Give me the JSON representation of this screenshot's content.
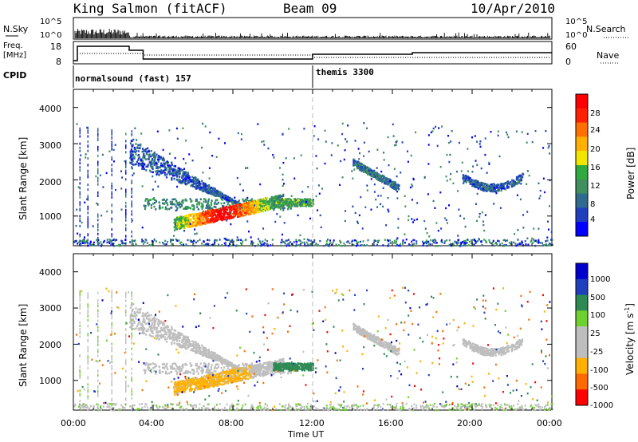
{
  "header": {
    "station": "King Salmon (fitACF)",
    "beam": "Beam 09",
    "date": "10/Apr/2010"
  },
  "summary": {
    "nsky_label": "N.Sky",
    "nsky_ticks": [
      "10^5",
      "10^0"
    ],
    "nsearch_label": "N.Search",
    "nsearch_ticks": [
      "10^5",
      "10^0"
    ],
    "freq_label": "Freq.",
    "freq_unit": "[MHz]",
    "freq_ticks": [
      "18",
      "8"
    ],
    "nave_label": "Nave",
    "nave_ticks": [
      "60",
      "0"
    ],
    "cpid_label": "CPID",
    "cpid_modes": [
      {
        "name": "normalsound (fast) 157",
        "start": 0,
        "end": 12
      },
      {
        "name": "themis 3300",
        "start": 12,
        "end": 24
      }
    ]
  },
  "panels": {
    "ylabel": "Slant Range [km]",
    "yticks": [
      "4000",
      "3000",
      "2000",
      "1000"
    ],
    "xlabel": "Time UT",
    "xticks": [
      "00:00",
      "04:00",
      "08:00",
      "12:00",
      "16:00",
      "20:00",
      "00:00"
    ],
    "power_label": "Power [dB]",
    "power_ticks": [
      "28",
      "24",
      "20",
      "16",
      "12",
      "8",
      "4"
    ],
    "velocity_label": "Velocity [m s",
    "velocity_sup": "-1",
    "velocity_close": "]",
    "velocity_ticks": [
      "1000",
      "500",
      "100",
      "25",
      "-25",
      "-100",
      "-500",
      "-1000"
    ]
  },
  "colors": {
    "power_scale": [
      "#0000ff",
      "#1f3fbf",
      "#2e6b8f",
      "#3f8f5f",
      "#2faa3f",
      "#f2e600",
      "#ffb000",
      "#ff7000",
      "#ff2000",
      "#ff0000"
    ],
    "velocity_scale": [
      "#ff0000",
      "#ff6a00",
      "#ffb000",
      "#bebebe",
      "#bebebe",
      "#6fd12f",
      "#2e8a55",
      "#1f3fbf",
      "#0000cc"
    ]
  },
  "chart_data": {
    "type": "heatmap",
    "x_range_hours": [
      0,
      24
    ],
    "y_range_km": [
      180,
      4500
    ],
    "power_range_db": [
      0,
      30
    ],
    "velocity_range_ms": [
      -1000,
      1000
    ],
    "scatter_regions": [
      {
        "name": "near-range band",
        "t0": 3.5,
        "t1": 11,
        "r0": 1200,
        "r1": 1500,
        "power": 10,
        "velocity": 0
      },
      {
        "name": "slanted arc 03-06UT",
        "t0": 2.8,
        "t1": 8.5,
        "r0": 1300,
        "r1": 3200,
        "power": 6,
        "velocity": 0
      },
      {
        "name": "strong echo 05-10UT",
        "t0": 5,
        "t1": 10.5,
        "r0": 800,
        "r1": 1500,
        "power": 24,
        "velocity": -150
      },
      {
        "name": "green echo 10-12UT",
        "t0": 10,
        "t1": 12,
        "r0": 1300,
        "r1": 1500,
        "power": 12,
        "velocity": 120
      },
      {
        "name": "evening arc 14-16UT",
        "t0": 14,
        "t1": 16.3,
        "r0": 1700,
        "r1": 2500,
        "power": 8,
        "velocity": 0
      },
      {
        "name": "late arc 20-22UT",
        "t0": 19.5,
        "t1": 22.5,
        "r0": 1700,
        "r1": 2300,
        "power": 6,
        "velocity": 0
      }
    ]
  }
}
